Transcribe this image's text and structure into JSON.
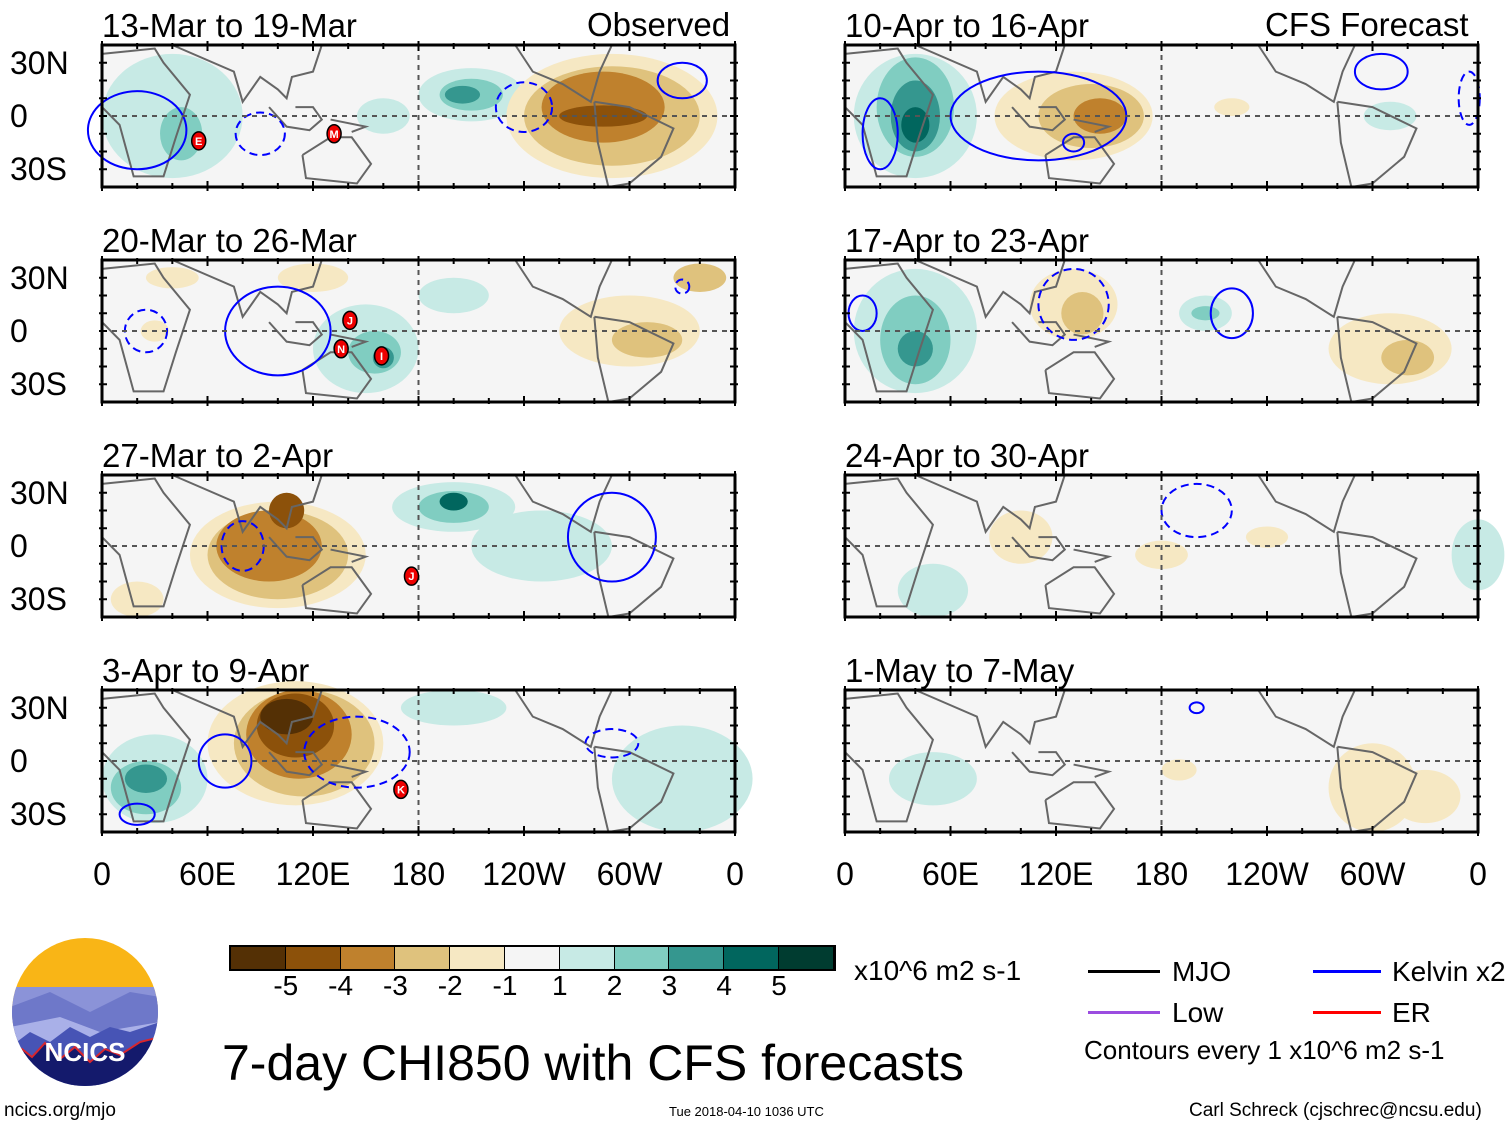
{
  "header": {
    "left_label": "Observed",
    "right_label": "CFS Forecast"
  },
  "lat_labels": [
    "30N",
    "0",
    "30S"
  ],
  "lon_labels": [
    "0",
    "60E",
    "120E",
    "180",
    "120W",
    "60W",
    "0"
  ],
  "colorbar": {
    "colors": [
      "#543005",
      "#8c510a",
      "#bf812d",
      "#dfc27d",
      "#f6e8c3",
      "#f5f5f5",
      "#c7eae5",
      "#80cdc1",
      "#35978f",
      "#01665e",
      "#003c30"
    ],
    "labels": [
      "-5",
      "-4",
      "-3",
      "-2",
      "-1",
      "1",
      "2",
      "3",
      "4",
      "5"
    ],
    "units": "x10^6 m2 s-1"
  },
  "legend": {
    "items": [
      {
        "label": "MJO",
        "color": "#000000"
      },
      {
        "label": "Kelvin x2",
        "color": "#0000ff"
      },
      {
        "label": "Low",
        "color": "#9b4de0"
      },
      {
        "label": "ER",
        "color": "#ff0000"
      }
    ],
    "contours_note": "Contours every 1 x10^6 m2 s-1"
  },
  "title": "7-day CHI850 with CFS forecasts",
  "logo_text": "NCICS",
  "footer": {
    "url": "ncics.org/mjo",
    "timestamp": "Tue 2018-04-10 1036 UTC",
    "author": "Carl Schreck (cjschrec@ncsu.edu)"
  },
  "chart_data": {
    "type": "heatmap",
    "lon_range": [
      0,
      360
    ],
    "lat_range": [
      -40,
      40
    ],
    "panels": [
      {
        "title": "13-Mar to 19-Mar",
        "blobs": [
          [
            40,
            0,
            40,
            35,
            1
          ],
          [
            45,
            -10,
            12,
            15,
            2
          ],
          [
            210,
            12,
            30,
            15,
            1
          ],
          [
            210,
            12,
            18,
            9,
            2
          ],
          [
            205,
            12,
            10,
            5,
            3
          ],
          [
            290,
            0,
            60,
            35,
            -1
          ],
          [
            290,
            0,
            50,
            28,
            -2
          ],
          [
            285,
            5,
            35,
            20,
            -3
          ],
          [
            285,
            0,
            25,
            6,
            -4
          ],
          [
            160,
            0,
            15,
            10,
            1
          ]
        ],
        "contours": [
          [
            20,
            -8,
            28,
            22,
            "solid"
          ],
          [
            90,
            -10,
            14,
            12,
            "dash"
          ],
          [
            240,
            5,
            16,
            14,
            "dash"
          ],
          [
            330,
            20,
            14,
            10,
            "solid"
          ]
        ],
        "storms": [
          [
            "E",
            55,
            -14
          ],
          [
            "M",
            132,
            -10
          ]
        ]
      },
      {
        "title": "20-Mar to 26-Mar",
        "blobs": [
          [
            150,
            -10,
            30,
            25,
            1
          ],
          [
            155,
            -12,
            15,
            12,
            2
          ],
          [
            160,
            -15,
            6,
            6,
            3
          ],
          [
            200,
            20,
            20,
            10,
            1
          ],
          [
            40,
            30,
            15,
            6,
            -1
          ],
          [
            120,
            30,
            20,
            8,
            -1
          ],
          [
            300,
            0,
            40,
            20,
            -1
          ],
          [
            310,
            -5,
            20,
            10,
            -2
          ],
          [
            340,
            30,
            15,
            8,
            -2
          ],
          [
            30,
            0,
            8,
            6,
            -1
          ]
        ],
        "contours": [
          [
            100,
            0,
            30,
            25,
            "solid"
          ],
          [
            25,
            0,
            12,
            12,
            "dash"
          ],
          [
            330,
            25,
            4,
            4,
            "dash"
          ]
        ],
        "storms": [
          [
            "J",
            141,
            6
          ],
          [
            "N",
            136,
            -10
          ],
          [
            "I",
            159,
            -14
          ]
        ]
      },
      {
        "title": "27-Mar to 2-Apr",
        "blobs": [
          [
            100,
            -5,
            50,
            30,
            -1
          ],
          [
            100,
            -5,
            40,
            25,
            -2
          ],
          [
            95,
            0,
            30,
            20,
            -3
          ],
          [
            105,
            20,
            10,
            10,
            -4
          ],
          [
            200,
            22,
            35,
            14,
            1
          ],
          [
            200,
            22,
            20,
            9,
            2
          ],
          [
            200,
            25,
            8,
            5,
            4
          ],
          [
            250,
            0,
            40,
            20,
            1
          ],
          [
            20,
            -30,
            15,
            10,
            -1
          ]
        ],
        "contours": [
          [
            80,
            0,
            12,
            14,
            "dash"
          ],
          [
            290,
            5,
            25,
            25,
            "solid"
          ]
        ],
        "storms": [
          [
            "J",
            176,
            -17
          ]
        ]
      },
      {
        "title": "3-Apr to 9-Apr",
        "blobs": [
          [
            110,
            10,
            50,
            35,
            -1
          ],
          [
            115,
            10,
            40,
            30,
            -2
          ],
          [
            112,
            15,
            30,
            25,
            -3
          ],
          [
            110,
            20,
            22,
            18,
            -4
          ],
          [
            105,
            25,
            15,
            10,
            -5
          ],
          [
            30,
            -10,
            30,
            25,
            1
          ],
          [
            25,
            -15,
            20,
            15,
            2
          ],
          [
            25,
            -10,
            12,
            8,
            3
          ],
          [
            330,
            -10,
            40,
            30,
            1
          ],
          [
            200,
            30,
            30,
            10,
            1
          ]
        ],
        "contours": [
          [
            70,
            0,
            15,
            15,
            "solid"
          ],
          [
            145,
            5,
            30,
            20,
            "dash"
          ],
          [
            20,
            -30,
            10,
            6,
            "solid"
          ],
          [
            290,
            10,
            15,
            8,
            "dash"
          ]
        ],
        "storms": [
          [
            "K",
            170,
            -16
          ]
        ]
      },
      {
        "title": "10-Apr to 16-Apr",
        "blobs": [
          [
            40,
            0,
            35,
            35,
            1
          ],
          [
            40,
            5,
            22,
            28,
            2
          ],
          [
            40,
            0,
            14,
            20,
            3
          ],
          [
            40,
            -5,
            8,
            10,
            4
          ],
          [
            130,
            0,
            45,
            25,
            -1
          ],
          [
            140,
            0,
            30,
            18,
            -2
          ],
          [
            145,
            0,
            15,
            10,
            -3
          ],
          [
            220,
            5,
            10,
            5,
            -1
          ],
          [
            310,
            0,
            15,
            8,
            1
          ]
        ],
        "contours": [
          [
            110,
            0,
            50,
            25,
            "solid"
          ],
          [
            130,
            -15,
            6,
            5,
            "solid"
          ],
          [
            20,
            -10,
            10,
            20,
            "solid"
          ],
          [
            355,
            10,
            6,
            15,
            "dash"
          ],
          [
            305,
            25,
            15,
            10,
            "solid"
          ]
        ],
        "storms": []
      },
      {
        "title": "17-Apr to 23-Apr",
        "blobs": [
          [
            40,
            0,
            35,
            35,
            1
          ],
          [
            40,
            -5,
            20,
            25,
            2
          ],
          [
            40,
            -10,
            10,
            10,
            3
          ],
          [
            130,
            15,
            25,
            20,
            -1
          ],
          [
            135,
            10,
            12,
            12,
            -2
          ],
          [
            205,
            10,
            15,
            10,
            1
          ],
          [
            205,
            10,
            8,
            4,
            2
          ],
          [
            310,
            -10,
            35,
            20,
            -1
          ],
          [
            320,
            -15,
            15,
            10,
            -2
          ]
        ],
        "contours": [
          [
            10,
            10,
            8,
            10,
            "solid"
          ],
          [
            130,
            15,
            20,
            20,
            "dash"
          ],
          [
            220,
            10,
            12,
            14,
            "solid"
          ]
        ],
        "storms": []
      },
      {
        "title": "24-Apr to 30-Apr",
        "blobs": [
          [
            100,
            5,
            18,
            15,
            -1
          ],
          [
            50,
            -25,
            20,
            15,
            1
          ],
          [
            360,
            -5,
            15,
            20,
            1
          ],
          [
            180,
            -5,
            15,
            8,
            -1
          ],
          [
            240,
            5,
            12,
            6,
            -1
          ]
        ],
        "contours": [
          [
            200,
            20,
            20,
            15,
            "dash"
          ]
        ],
        "storms": []
      },
      {
        "title": "1-May to 7-May",
        "blobs": [
          [
            50,
            -10,
            25,
            15,
            1
          ],
          [
            300,
            -15,
            25,
            25,
            -1
          ],
          [
            330,
            -20,
            20,
            15,
            -1
          ],
          [
            190,
            -5,
            10,
            6,
            -1
          ]
        ],
        "contours": [
          [
            200,
            30,
            4,
            3,
            "solid"
          ]
        ],
        "storms": []
      }
    ]
  }
}
